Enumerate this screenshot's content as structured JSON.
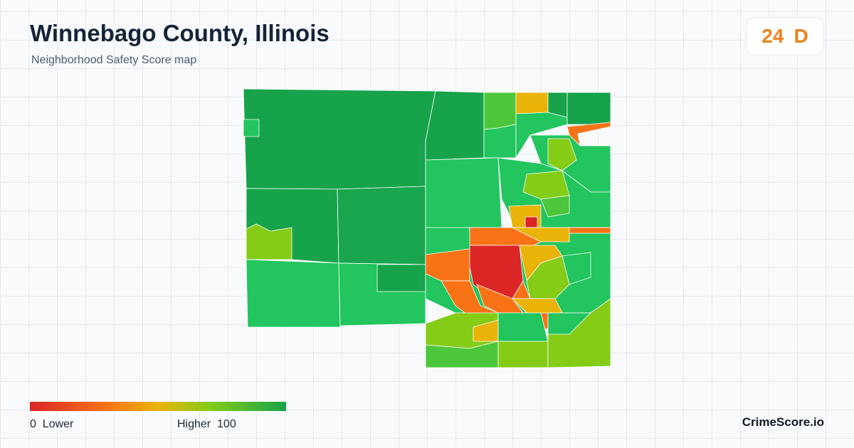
{
  "header": {
    "title": "Winnebago County, Illinois",
    "subtitle": "Neighborhood Safety Score map"
  },
  "score": {
    "value": 24,
    "grade": "D"
  },
  "legend": {
    "min": 0,
    "min_label": "Lower",
    "max_label": "Higher",
    "max": 100
  },
  "footer": {
    "brand": "CrimeScore.io"
  }
}
